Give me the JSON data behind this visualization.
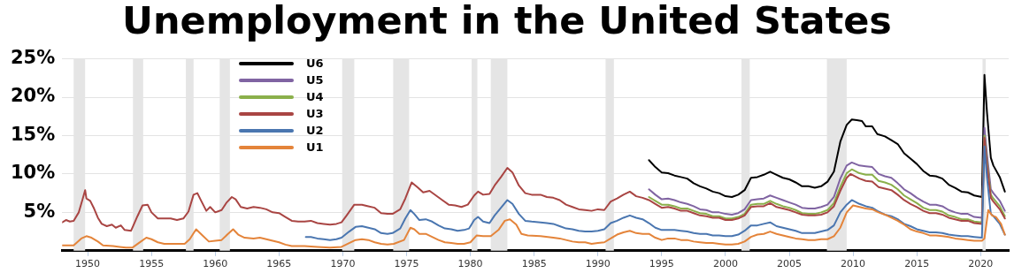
{
  "chart_data": {
    "type": "line",
    "title": "Unemployment in the United States",
    "xlim": [
      1948,
      2022.2
    ],
    "xticks": [
      1950,
      1955,
      1960,
      1965,
      1970,
      1975,
      1980,
      1985,
      1990,
      1995,
      2000,
      2005,
      2010,
      2015,
      2020
    ],
    "ylim": [
      0,
      25
    ],
    "yticks": [
      {
        "value": 5,
        "label": "5%"
      },
      {
        "value": 10,
        "label": "10%"
      },
      {
        "value": 15,
        "label": "15%"
      },
      {
        "value": 20,
        "label": "20%"
      },
      {
        "value": 25,
        "label": "25%"
      }
    ],
    "grid": "y",
    "legend": "top left",
    "bands": [
      {
        "axis": "x",
        "from": 1948.9,
        "to": 1949.8,
        "color": "#e5e5e5"
      },
      {
        "axis": "x",
        "from": 1953.55,
        "to": 1954.35,
        "color": "#e5e5e5"
      },
      {
        "axis": "x",
        "from": 1957.7,
        "to": 1958.3,
        "color": "#e5e5e5"
      },
      {
        "axis": "x",
        "from": 1960.35,
        "to": 1961.15,
        "color": "#e5e5e5"
      },
      {
        "axis": "x",
        "from": 1969.95,
        "to": 1970.9,
        "color": "#e5e5e5"
      },
      {
        "axis": "x",
        "from": 1973.95,
        "to": 1975.2,
        "color": "#e5e5e5"
      },
      {
        "axis": "x",
        "from": 1980.1,
        "to": 1980.55,
        "color": "#e5e5e5"
      },
      {
        "axis": "x",
        "from": 1981.6,
        "to": 1982.9,
        "color": "#e5e5e5"
      },
      {
        "axis": "x",
        "from": 1990.6,
        "to": 1991.25,
        "color": "#e5e5e5"
      },
      {
        "axis": "x",
        "from": 2001.25,
        "to": 2001.9,
        "color": "#e5e5e5"
      },
      {
        "axis": "x",
        "from": 2007.95,
        "to": 2009.5,
        "color": "#e5e5e5"
      },
      {
        "axis": "x",
        "from": 2020.15,
        "to": 2020.4,
        "color": "#e5e5e5"
      }
    ],
    "series": [
      {
        "name": "U6",
        "color": "#000000",
        "x": [
          1994.0,
          1994.5,
          1995.0,
          1995.5,
          1996.0,
          1996.5,
          1997.0,
          1997.5,
          1998.0,
          1998.5,
          1999.0,
          1999.5,
          2000.0,
          2000.5,
          2001.0,
          2001.5,
          2002.0,
          2002.5,
          2003.0,
          2003.5,
          2004.0,
          2004.5,
          2005.0,
          2005.5,
          2006.0,
          2006.5,
          2007.0,
          2007.5,
          2008.0,
          2008.5,
          2009.0,
          2009.5,
          2009.9,
          2010.3,
          2010.7,
          2011.0,
          2011.5,
          2011.9,
          2012.5,
          2013.0,
          2013.5,
          2014.0,
          2014.5,
          2015.0,
          2015.5,
          2016.0,
          2016.5,
          2017.0,
          2017.5,
          2018.0,
          2018.5,
          2019.0,
          2019.5,
          2020.1,
          2020.3,
          2020.5,
          2020.8,
          2021.0,
          2021.5,
          2021.9
        ],
        "values": [
          11.8,
          10.9,
          10.2,
          10.1,
          9.8,
          9.6,
          9.4,
          8.8,
          8.4,
          8.1,
          7.7,
          7.5,
          7.1,
          7.0,
          7.3,
          7.9,
          9.5,
          9.6,
          9.9,
          10.3,
          9.9,
          9.5,
          9.3,
          8.9,
          8.4,
          8.4,
          8.2,
          8.4,
          9.0,
          10.3,
          14.2,
          16.4,
          17.1,
          17.0,
          16.9,
          16.2,
          16.2,
          15.2,
          14.9,
          14.4,
          13.9,
          12.7,
          12.0,
          11.3,
          10.4,
          9.8,
          9.7,
          9.4,
          8.6,
          8.2,
          7.7,
          7.6,
          7.2,
          7.0,
          22.9,
          18.0,
          12.1,
          11.1,
          9.6,
          7.7
        ]
      },
      {
        "name": "U5",
        "color": "#8064a2",
        "x": [
          1994.0,
          1994.5,
          1995.0,
          1995.5,
          1996.0,
          1996.5,
          1997.0,
          1997.5,
          1998.0,
          1998.5,
          1999.0,
          1999.5,
          2000.0,
          2000.5,
          2001.0,
          2001.5,
          2002.0,
          2002.5,
          2003.0,
          2003.5,
          2004.0,
          2004.5,
          2005.0,
          2005.5,
          2006.0,
          2006.5,
          2007.0,
          2007.5,
          2008.0,
          2008.5,
          2009.0,
          2009.5,
          2009.9,
          2010.5,
          2011.0,
          2011.5,
          2012.0,
          2012.5,
          2013.0,
          2013.5,
          2014.0,
          2014.5,
          2015.0,
          2015.5,
          2016.0,
          2016.5,
          2017.0,
          2017.5,
          2018.0,
          2018.5,
          2019.0,
          2019.5,
          2020.1,
          2020.3,
          2020.5,
          2020.8,
          2021.0,
          2021.5,
          2021.9
        ],
        "values": [
          8.0,
          7.3,
          6.7,
          6.8,
          6.6,
          6.3,
          6.1,
          5.8,
          5.4,
          5.3,
          5.0,
          5.0,
          4.8,
          4.7,
          4.9,
          5.4,
          6.6,
          6.7,
          6.8,
          7.2,
          6.9,
          6.6,
          6.3,
          6.0,
          5.6,
          5.5,
          5.5,
          5.7,
          6.0,
          7.0,
          9.4,
          11.1,
          11.5,
          11.1,
          11.0,
          10.9,
          10.0,
          9.7,
          9.5,
          8.8,
          8.0,
          7.5,
          6.9,
          6.4,
          6.0,
          6.0,
          5.8,
          5.3,
          5.0,
          4.8,
          4.8,
          4.4,
          4.3,
          16.0,
          12.6,
          8.0,
          7.5,
          6.5,
          5.2
        ]
      },
      {
        "name": "U4",
        "color": "#8bb04b",
        "x": [
          1994.0,
          1994.5,
          1995.0,
          1995.5,
          1996.0,
          1996.5,
          1997.0,
          1997.5,
          1998.0,
          1998.5,
          1999.0,
          1999.5,
          2000.0,
          2000.5,
          2001.0,
          2001.5,
          2002.0,
          2002.5,
          2003.0,
          2003.5,
          2004.0,
          2004.5,
          2005.0,
          2005.5,
          2006.0,
          2006.5,
          2007.0,
          2007.5,
          2008.0,
          2008.5,
          2009.0,
          2009.5,
          2009.9,
          2010.5,
          2011.0,
          2011.5,
          2012.0,
          2012.5,
          2013.0,
          2013.5,
          2014.0,
          2014.5,
          2015.0,
          2015.5,
          2016.0,
          2016.5,
          2017.0,
          2017.5,
          2018.0,
          2018.5,
          2019.0,
          2019.5,
          2020.1,
          2020.3,
          2020.5,
          2020.8,
          2021.0,
          2021.5,
          2021.9
        ],
        "values": [
          7.0,
          6.5,
          6.0,
          6.0,
          5.8,
          5.5,
          5.5,
          5.2,
          4.9,
          4.8,
          4.5,
          4.5,
          4.2,
          4.2,
          4.4,
          4.8,
          6.0,
          6.1,
          6.1,
          6.5,
          6.1,
          5.8,
          5.6,
          5.3,
          4.9,
          4.8,
          4.8,
          5.0,
          5.3,
          6.2,
          8.3,
          10.1,
          10.6,
          10.1,
          9.9,
          9.9,
          9.1,
          8.9,
          8.6,
          8.0,
          7.2,
          6.7,
          6.2,
          5.6,
          5.3,
          5.3,
          5.1,
          4.6,
          4.4,
          4.1,
          4.1,
          3.8,
          3.7,
          15.0,
          11.6,
          7.3,
          6.8,
          5.8,
          4.5
        ]
      },
      {
        "name": "U3",
        "color": "#a94543",
        "x": [
          1948.0,
          1948.3,
          1948.6,
          1948.9,
          1949.3,
          1949.6,
          1949.8,
          1949.9,
          1950.2,
          1950.5,
          1950.8,
          1951.1,
          1951.5,
          1951.9,
          1952.2,
          1952.6,
          1952.9,
          1953.4,
          1953.9,
          1954.3,
          1954.7,
          1955.0,
          1955.5,
          1956.0,
          1956.5,
          1957.0,
          1957.5,
          1957.9,
          1958.3,
          1958.6,
          1958.9,
          1959.3,
          1959.6,
          1960.0,
          1960.5,
          1960.9,
          1961.3,
          1961.6,
          1962.0,
          1962.5,
          1963.0,
          1963.5,
          1964.0,
          1964.5,
          1965.0,
          1965.5,
          1966.0,
          1966.5,
          1967.0,
          1967.5,
          1968.0,
          1968.5,
          1969.0,
          1969.5,
          1969.9,
          1970.3,
          1970.9,
          1971.5,
          1972.0,
          1972.5,
          1973.0,
          1973.5,
          1973.9,
          1974.5,
          1974.9,
          1975.4,
          1975.9,
          1976.3,
          1976.8,
          1977.3,
          1977.8,
          1978.3,
          1978.8,
          1979.3,
          1979.8,
          1980.3,
          1980.6,
          1981.0,
          1981.5,
          1981.9,
          1982.4,
          1982.9,
          1983.3,
          1983.8,
          1984.3,
          1984.8,
          1985.5,
          1986.0,
          1986.5,
          1987.0,
          1987.5,
          1988.0,
          1988.5,
          1989.0,
          1989.5,
          1990.0,
          1990.5,
          1991.0,
          1991.5,
          1992.0,
          1992.5,
          1993.0,
          1993.5,
          1994.0,
          1994.5,
          1995.0,
          1995.5,
          1996.0,
          1996.5,
          1997.0,
          1997.5,
          1998.0,
          1998.5,
          1999.0,
          1999.5,
          2000.0,
          2000.5,
          2001.0,
          2001.5,
          2002.0,
          2002.5,
          2003.0,
          2003.5,
          2004.0,
          2004.5,
          2005.0,
          2005.5,
          2006.0,
          2006.5,
          2007.0,
          2007.5,
          2008.0,
          2008.5,
          2009.0,
          2009.5,
          2009.8,
          2010.5,
          2011.0,
          2011.5,
          2012.0,
          2012.5,
          2013.0,
          2013.5,
          2014.0,
          2014.5,
          2015.0,
          2015.5,
          2016.0,
          2016.5,
          2017.0,
          2017.5,
          2018.0,
          2018.5,
          2019.0,
          2019.5,
          2020.1,
          2020.3,
          2020.5,
          2020.8,
          2021.0,
          2021.5,
          2021.9
        ],
        "values": [
          3.7,
          4.0,
          3.8,
          3.9,
          5.0,
          6.7,
          7.9,
          6.8,
          6.5,
          5.5,
          4.3,
          3.5,
          3.2,
          3.4,
          3.0,
          3.3,
          2.7,
          2.6,
          4.5,
          5.9,
          6.0,
          5.0,
          4.2,
          4.2,
          4.2,
          4.0,
          4.2,
          5.1,
          7.3,
          7.5,
          6.5,
          5.2,
          5.7,
          5.0,
          5.3,
          6.3,
          7.0,
          6.7,
          5.7,
          5.5,
          5.7,
          5.6,
          5.4,
          5.0,
          4.9,
          4.4,
          3.9,
          3.8,
          3.8,
          3.9,
          3.6,
          3.5,
          3.4,
          3.5,
          3.7,
          4.6,
          6.0,
          6.0,
          5.8,
          5.6,
          4.9,
          4.8,
          4.8,
          5.4,
          6.8,
          8.9,
          8.2,
          7.6,
          7.8,
          7.2,
          6.6,
          6.0,
          5.9,
          5.7,
          6.0,
          7.2,
          7.7,
          7.3,
          7.4,
          8.5,
          9.6,
          10.8,
          10.2,
          8.5,
          7.5,
          7.3,
          7.3,
          7.0,
          6.9,
          6.6,
          6.0,
          5.7,
          5.4,
          5.3,
          5.2,
          5.4,
          5.3,
          6.4,
          6.8,
          7.3,
          7.7,
          7.1,
          6.9,
          6.6,
          6.1,
          5.6,
          5.7,
          5.5,
          5.2,
          5.2,
          4.9,
          4.6,
          4.5,
          4.3,
          4.3,
          4.0,
          4.0,
          4.2,
          4.6,
          5.7,
          5.8,
          5.8,
          6.2,
          5.7,
          5.5,
          5.3,
          5.0,
          4.7,
          4.6,
          4.6,
          4.7,
          5.0,
          5.8,
          7.8,
          9.5,
          10.0,
          9.4,
          9.1,
          9.0,
          8.3,
          8.1,
          7.9,
          7.3,
          6.6,
          6.1,
          5.7,
          5.2,
          4.9,
          4.9,
          4.7,
          4.3,
          4.1,
          3.9,
          3.9,
          3.6,
          3.5,
          14.7,
          11.1,
          6.9,
          6.4,
          5.4,
          4.2
        ]
      },
      {
        "name": "U2",
        "color": "#4a76b0",
        "x": [
          1967.1,
          1967.5,
          1968.0,
          1968.5,
          1969.0,
          1969.5,
          1969.9,
          1970.5,
          1971.0,
          1971.5,
          1972.0,
          1972.5,
          1973.0,
          1973.5,
          1973.9,
          1974.5,
          1974.9,
          1975.3,
          1975.6,
          1976.0,
          1976.5,
          1977.0,
          1977.5,
          1978.0,
          1978.5,
          1979.0,
          1979.5,
          1979.9,
          1980.3,
          1980.6,
          1981.0,
          1981.5,
          1981.9,
          1982.4,
          1982.9,
          1983.3,
          1983.8,
          1984.3,
          1984.8,
          1985.5,
          1986.0,
          1986.5,
          1987.0,
          1987.5,
          1988.0,
          1988.5,
          1989.0,
          1989.5,
          1990.0,
          1990.5,
          1991.0,
          1991.5,
          1992.0,
          1992.5,
          1993.0,
          1993.5,
          1994.0,
          1994.5,
          1995.0,
          1995.5,
          1996.0,
          1996.5,
          1997.0,
          1997.5,
          1998.0,
          1998.5,
          1999.0,
          1999.5,
          2000.0,
          2000.5,
          2001.0,
          2001.5,
          2002.0,
          2002.5,
          2003.0,
          2003.5,
          2004.0,
          2004.5,
          2005.0,
          2005.5,
          2006.0,
          2006.5,
          2007.0,
          2007.5,
          2008.0,
          2008.5,
          2009.0,
          2009.5,
          2009.9,
          2010.5,
          2011.0,
          2011.5,
          2012.0,
          2012.5,
          2013.0,
          2013.5,
          2014.0,
          2014.5,
          2015.0,
          2015.5,
          2016.0,
          2016.5,
          2017.0,
          2017.5,
          2018.0,
          2018.5,
          2019.0,
          2019.5,
          2020.1,
          2020.3,
          2020.5,
          2020.8,
          2021.0,
          2021.5,
          2021.9
        ],
        "values": [
          1.8,
          1.8,
          1.6,
          1.5,
          1.4,
          1.5,
          1.7,
          2.5,
          3.1,
          3.2,
          3.0,
          2.8,
          2.3,
          2.2,
          2.3,
          2.9,
          4.2,
          5.3,
          4.8,
          4.0,
          4.1,
          3.8,
          3.3,
          2.9,
          2.8,
          2.6,
          2.7,
          2.9,
          4.0,
          4.4,
          3.8,
          3.6,
          4.6,
          5.6,
          6.6,
          6.1,
          4.8,
          3.9,
          3.8,
          3.7,
          3.6,
          3.5,
          3.2,
          2.9,
          2.8,
          2.6,
          2.5,
          2.5,
          2.6,
          2.8,
          3.6,
          3.9,
          4.3,
          4.6,
          4.3,
          4.1,
          3.6,
          3.0,
          2.7,
          2.7,
          2.7,
          2.6,
          2.5,
          2.3,
          2.2,
          2.2,
          2.0,
          2.0,
          1.9,
          1.9,
          2.1,
          2.6,
          3.3,
          3.3,
          3.5,
          3.7,
          3.2,
          3.0,
          2.8,
          2.6,
          2.3,
          2.3,
          2.3,
          2.5,
          2.7,
          3.3,
          5.0,
          6.0,
          6.6,
          6.1,
          5.8,
          5.6,
          5.1,
          4.7,
          4.5,
          4.1,
          3.5,
          3.2,
          2.8,
          2.6,
          2.4,
          2.4,
          2.3,
          2.1,
          2.0,
          1.9,
          1.9,
          1.8,
          1.7,
          13.6,
          9.5,
          4.8,
          4.5,
          3.5,
          2.1
        ]
      },
      {
        "name": "U1",
        "color": "#e4843a",
        "x": [
          1948.0,
          1948.9,
          1949.5,
          1949.9,
          1950.3,
          1950.8,
          1951.2,
          1952.0,
          1952.5,
          1953.0,
          1953.5,
          1954.0,
          1954.6,
          1955.0,
          1955.5,
          1956.0,
          1956.5,
          1957.0,
          1957.6,
          1958.0,
          1958.5,
          1959.0,
          1959.5,
          1960.0,
          1960.5,
          1961.0,
          1961.4,
          1961.8,
          1962.3,
          1963.0,
          1963.5,
          1964.0,
          1964.5,
          1965.0,
          1965.5,
          1966.0,
          1967.0,
          1968.0,
          1969.0,
          1969.9,
          1970.5,
          1971.0,
          1971.5,
          1972.0,
          1972.5,
          1973.0,
          1973.5,
          1974.0,
          1974.8,
          1975.3,
          1975.6,
          1976.0,
          1976.5,
          1977.0,
          1977.5,
          1978.0,
          1978.5,
          1979.0,
          1979.5,
          1980.0,
          1980.5,
          1981.0,
          1981.6,
          1982.2,
          1982.7,
          1983.1,
          1983.6,
          1984.0,
          1984.5,
          1985.5,
          1986.5,
          1987.0,
          1987.5,
          1988.0,
          1988.5,
          1989.0,
          1989.5,
          1990.0,
          1990.5,
          1991.0,
          1991.5,
          1992.0,
          1992.5,
          1993.0,
          1993.5,
          1994.0,
          1994.5,
          1995.0,
          1995.5,
          1996.0,
          1996.5,
          1997.0,
          1997.5,
          1998.0,
          1998.5,
          1999.0,
          1999.5,
          2000.0,
          2000.5,
          2001.0,
          2001.5,
          2002.0,
          2002.5,
          2003.0,
          2003.5,
          2004.0,
          2004.5,
          2005.0,
          2005.5,
          2006.0,
          2006.5,
          2007.0,
          2007.5,
          2008.0,
          2008.5,
          2009.0,
          2009.5,
          2010.0,
          2010.5,
          2011.0,
          2011.5,
          2012.0,
          2012.5,
          2013.0,
          2013.5,
          2014.0,
          2014.5,
          2015.0,
          2015.5,
          2016.0,
          2016.5,
          2017.0,
          2017.5,
          2018.0,
          2018.5,
          2019.0,
          2019.5,
          2020.1,
          2020.3,
          2020.6,
          2020.9,
          2021.2,
          2021.6,
          2021.9
        ],
        "values": [
          0.7,
          0.7,
          1.6,
          1.9,
          1.7,
          1.2,
          0.7,
          0.6,
          0.5,
          0.4,
          0.4,
          1.0,
          1.7,
          1.5,
          1.1,
          0.9,
          0.9,
          0.9,
          0.9,
          1.5,
          2.8,
          2.0,
          1.2,
          1.3,
          1.4,
          2.2,
          2.8,
          2.1,
          1.7,
          1.6,
          1.7,
          1.5,
          1.3,
          1.1,
          0.8,
          0.6,
          0.6,
          0.5,
          0.4,
          0.5,
          1.0,
          1.4,
          1.5,
          1.4,
          1.1,
          0.9,
          0.8,
          0.9,
          1.4,
          3.0,
          2.8,
          2.2,
          2.2,
          1.8,
          1.4,
          1.1,
          1.0,
          0.9,
          0.9,
          1.1,
          2.0,
          1.9,
          1.9,
          2.7,
          3.9,
          4.1,
          3.4,
          2.2,
          2.0,
          1.9,
          1.7,
          1.6,
          1.4,
          1.2,
          1.1,
          1.1,
          0.9,
          1.0,
          1.1,
          1.6,
          2.1,
          2.4,
          2.6,
          2.3,
          2.2,
          2.2,
          1.7,
          1.4,
          1.6,
          1.6,
          1.4,
          1.4,
          1.2,
          1.1,
          1.0,
          1.0,
          0.9,
          0.8,
          0.8,
          0.9,
          1.2,
          1.8,
          2.1,
          2.2,
          2.5,
          2.2,
          2.0,
          1.8,
          1.6,
          1.5,
          1.4,
          1.4,
          1.5,
          1.5,
          1.9,
          3.0,
          5.0,
          5.9,
          5.7,
          5.5,
          5.4,
          5.0,
          4.7,
          4.3,
          3.9,
          3.4,
          2.8,
          2.5,
          2.3,
          2.0,
          2.0,
          1.9,
          1.8,
          1.6,
          1.5,
          1.4,
          1.3,
          1.3,
          1.6,
          5.3,
          4.6,
          4.4,
          3.5,
          2.1
        ]
      }
    ]
  }
}
